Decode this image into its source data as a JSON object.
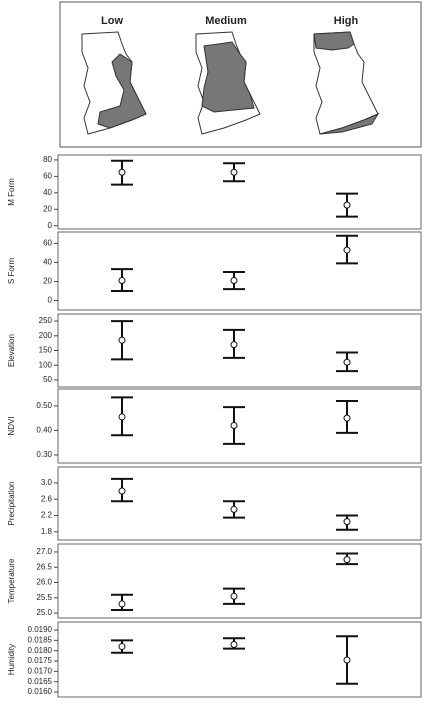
{
  "map_labels": [
    "Low",
    "Medium",
    "High"
  ],
  "chart_data": [
    {
      "type": "errorbar",
      "y_label": "M Form",
      "values": [
        65,
        65,
        25
      ],
      "lower": [
        50,
        54,
        11
      ],
      "upper": [
        79,
        76,
        39
      ],
      "ylim": [
        -4,
        86
      ],
      "yticks": [
        0,
        20,
        40,
        60,
        80
      ]
    },
    {
      "type": "errorbar",
      "y_label": "S Form",
      "values": [
        21,
        21,
        53
      ],
      "lower": [
        10,
        12,
        39
      ],
      "upper": [
        33,
        30,
        68
      ],
      "ylim": [
        -10,
        72
      ],
      "yticks": [
        0,
        20,
        40,
        60
      ]
    },
    {
      "type": "errorbar",
      "y_label": "Elevation",
      "values": [
        185,
        170,
        110
      ],
      "lower": [
        120,
        125,
        80
      ],
      "upper": [
        250,
        220,
        143
      ],
      "ylim": [
        26,
        274
      ],
      "yticks": [
        50,
        100,
        150,
        200,
        250
      ]
    },
    {
      "type": "errorbar",
      "y_label": "NDVI",
      "values": [
        0.455,
        0.42,
        0.45
      ],
      "lower": [
        0.38,
        0.345,
        0.39
      ],
      "upper": [
        0.535,
        0.495,
        0.52
      ],
      "ylim": [
        0.267,
        0.569
      ],
      "yticks": [
        {
          "value": 0.3,
          "label": "0.30"
        },
        {
          "value": 0.4,
          "label": "0.40"
        },
        {
          "value": 0.5,
          "label": "0.50"
        }
      ]
    },
    {
      "type": "errorbar",
      "y_label": "Precipitation",
      "values": [
        2.8,
        2.35,
        2.05
      ],
      "lower": [
        2.55,
        2.15,
        1.85
      ],
      "upper": [
        3.1,
        2.55,
        2.2
      ],
      "ylim": [
        1.6,
        3.39
      ],
      "yticks": [
        1.8,
        2.2,
        2.6,
        {
          "value": 3,
          "label": "3.0"
        }
      ]
    },
    {
      "type": "errorbar",
      "y_label": "Temperature",
      "values": [
        25.3,
        25.55,
        26.75
      ],
      "lower": [
        25.1,
        25.3,
        26.6
      ],
      "upper": [
        25.6,
        25.8,
        26.95
      ],
      "ylim": [
        24.84,
        27.26
      ],
      "yticks": [
        {
          "value": 25,
          "label": "25.0"
        },
        25.5,
        {
          "value": 26,
          "label": "26.0"
        },
        26.5,
        {
          "value": 27,
          "label": "27.0"
        }
      ]
    },
    {
      "type": "errorbar",
      "y_label": "Humidity",
      "values": [
        0.0182,
        0.0183,
        0.01755
      ],
      "lower": [
        0.0179,
        0.0181,
        0.0164
      ],
      "upper": [
        0.0185,
        0.0186,
        0.0187
      ],
      "ylim": [
        0.01576,
        0.019387
      ],
      "yticks": [
        {
          "value": 0.016,
          "label": "0.0160"
        },
        0.0165,
        {
          "value": 0.017,
          "label": "0.0170"
        },
        0.0175,
        {
          "value": 0.018,
          "label": "0.0180"
        },
        0.0185,
        {
          "value": 0.019,
          "label": "0.0190"
        }
      ]
    }
  ]
}
